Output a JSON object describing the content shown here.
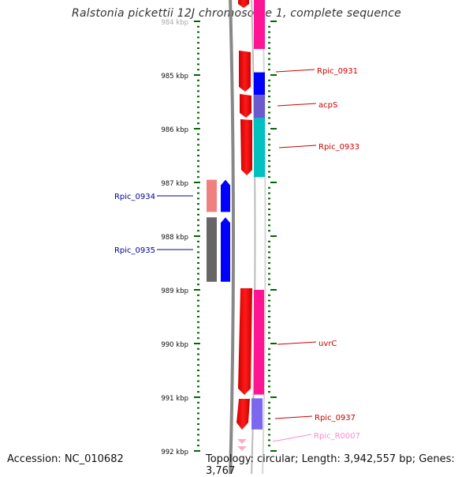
{
  "title": "Ralstonia pickettii 12J chromosome 1, complete sequence",
  "footer": {
    "accession": "Accession: NC_010682",
    "summary": "Topology: circular; Length: 3,942,557 bp; Genes: 3,767"
  },
  "ruler": {
    "ticks": [
      "984 kbp",
      "985 kbp",
      "986 kbp",
      "987 kbp",
      "988 kbp",
      "989 kbp",
      "990 kbp",
      "991 kbp",
      "992 kbp"
    ],
    "start_kbp": 984,
    "end_kbp": 992
  },
  "features": {
    "forward": [
      {
        "label": "Rpic_0931",
        "start_kbp": 984.95,
        "end_kbp": 985.37,
        "color": "#0000ff"
      },
      {
        "label": "acpS",
        "start_kbp": 985.37,
        "end_kbp": 985.8,
        "color": "#6a5acd"
      },
      {
        "label": "Rpic_0933",
        "start_kbp": 985.8,
        "end_kbp": 986.9,
        "color": "#00c0c0"
      },
      {
        "label": "uvrC",
        "start_kbp": 989.0,
        "end_kbp": 990.95,
        "color": "#ff1493"
      },
      {
        "label": "Rpic_0937",
        "start_kbp": 991.02,
        "end_kbp": 991.6,
        "color": "#7b68ee"
      },
      {
        "label": "Rpic_R0007",
        "start_kbp": 991.78,
        "end_kbp": 992.0,
        "color": "#ffaacc"
      }
    ],
    "reverse": [
      {
        "label": "Rpic_0934",
        "start_kbp": 986.95,
        "end_kbp": 987.55,
        "color": "#0000ff"
      },
      {
        "label": "Rpic_0935",
        "start_kbp": 987.65,
        "end_kbp": 988.85,
        "color": "#0000ff"
      }
    ]
  },
  "colors": {
    "cds": "#ff0000",
    "forward_label": "#cc0000",
    "reverse_label": "#000099",
    "rna_label": "#ff88cc",
    "ruler_tick": "#006600",
    "backbone": "#888888"
  }
}
